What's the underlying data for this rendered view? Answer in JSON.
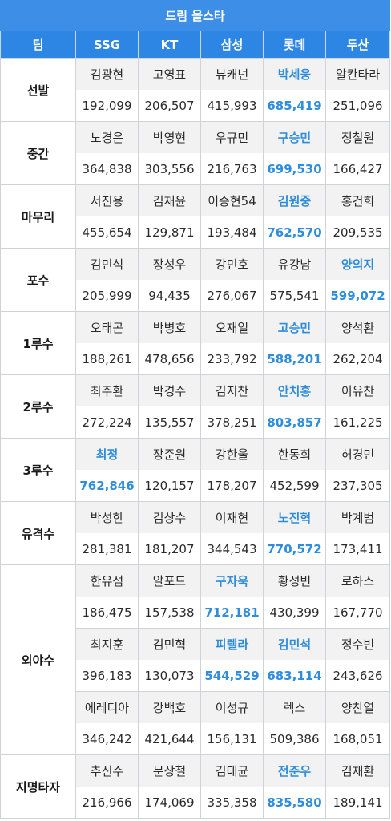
{
  "title": "드림 올스타",
  "columns": [
    "팀",
    "SSG",
    "KT",
    "삼성",
    "롯데",
    "두산"
  ],
  "colors": {
    "header": "#2d86e4",
    "winner": "#2f8ddb",
    "band": "#f2f2f2"
  },
  "groups": [
    {
      "position": "선발",
      "rows": [
        {
          "names": [
            "김광현",
            "고영표",
            "뷰캐넌",
            "박세웅",
            "알칸타라"
          ],
          "votes": [
            "192,099",
            "206,507",
            "415,993",
            "685,419",
            "251,096"
          ],
          "winner": 3
        }
      ]
    },
    {
      "position": "중간",
      "rows": [
        {
          "names": [
            "노경은",
            "박영현",
            "우규민",
            "구승민",
            "정철원"
          ],
          "votes": [
            "364,838",
            "303,556",
            "216,763",
            "699,530",
            "166,427"
          ],
          "winner": 3
        }
      ]
    },
    {
      "position": "마무리",
      "rows": [
        {
          "names": [
            "서진용",
            "김재윤",
            "이승현54",
            "김원중",
            "홍건희"
          ],
          "votes": [
            "455,654",
            "129,871",
            "193,484",
            "762,570",
            "209,535"
          ],
          "winner": 3
        }
      ]
    },
    {
      "position": "포수",
      "rows": [
        {
          "names": [
            "김민식",
            "장성우",
            "강민호",
            "유강남",
            "양의지"
          ],
          "votes": [
            "205,999",
            "94,435",
            "276,067",
            "575,541",
            "599,072"
          ],
          "winner": 4
        }
      ]
    },
    {
      "position": "1루수",
      "rows": [
        {
          "names": [
            "오태곤",
            "박병호",
            "오재일",
            "고승민",
            "양석환"
          ],
          "votes": [
            "188,261",
            "478,656",
            "233,792",
            "588,201",
            "262,204"
          ],
          "winner": 3
        }
      ]
    },
    {
      "position": "2루수",
      "rows": [
        {
          "names": [
            "최주환",
            "박경수",
            "김지찬",
            "안치홍",
            "이유찬"
          ],
          "votes": [
            "272,224",
            "135,557",
            "378,251",
            "803,857",
            "161,225"
          ],
          "winner": 3
        }
      ]
    },
    {
      "position": "3루수",
      "rows": [
        {
          "names": [
            "최정",
            "장준원",
            "강한울",
            "한동희",
            "허경민"
          ],
          "votes": [
            "762,846",
            "120,157",
            "178,207",
            "452,599",
            "237,305"
          ],
          "winner": 0
        }
      ]
    },
    {
      "position": "유격수",
      "rows": [
        {
          "names": [
            "박성한",
            "김상수",
            "이재현",
            "노진혁",
            "박계범"
          ],
          "votes": [
            "281,381",
            "181,207",
            "344,543",
            "770,572",
            "173,411"
          ],
          "winner": 3
        }
      ]
    },
    {
      "position": "외야수",
      "rows": [
        {
          "names": [
            "한유섬",
            "알포드",
            "구자욱",
            "황성빈",
            "로하스"
          ],
          "votes": [
            "186,475",
            "157,538",
            "712,181",
            "430,399",
            "167,770"
          ],
          "winner": [
            2
          ]
        },
        {
          "names": [
            "최지훈",
            "김민혁",
            "피렐라",
            "김민석",
            "정수빈"
          ],
          "votes": [
            "396,183",
            "130,073",
            "544,529",
            "683,114",
            "243,626"
          ],
          "winner": [
            2,
            3
          ]
        },
        {
          "names": [
            "에레디아",
            "강백호",
            "이성규",
            "렉스",
            "양찬열"
          ],
          "votes": [
            "346,242",
            "421,644",
            "156,131",
            "509,386",
            "168,051"
          ],
          "winner": []
        }
      ]
    },
    {
      "position": "지명타자",
      "rows": [
        {
          "names": [
            "추신수",
            "문상철",
            "김태균",
            "전준우",
            "김재환"
          ],
          "votes": [
            "216,966",
            "174,069",
            "335,358",
            "835,580",
            "189,141"
          ],
          "winner": 3
        }
      ]
    }
  ]
}
